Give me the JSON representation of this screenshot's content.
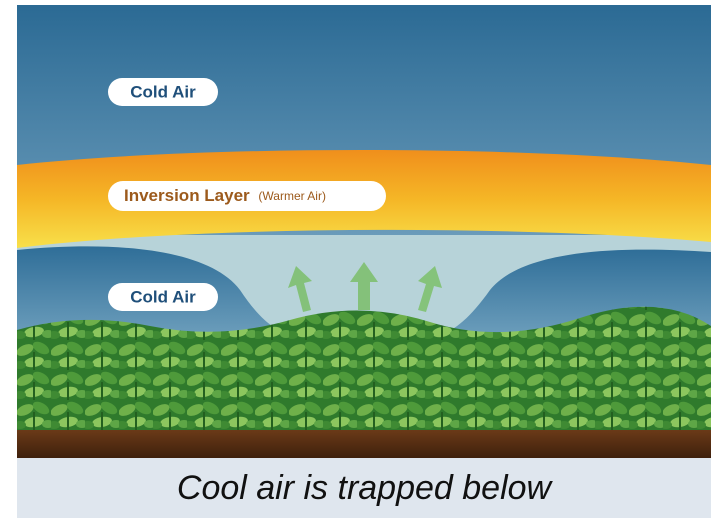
{
  "labels": {
    "cold_air_top": "Cold Air",
    "inversion": "Inversion Layer",
    "inversion_note": "(Warmer Air)",
    "cold_air_bottom": "Cold Air"
  },
  "caption": "Cool air is trapped below"
}
